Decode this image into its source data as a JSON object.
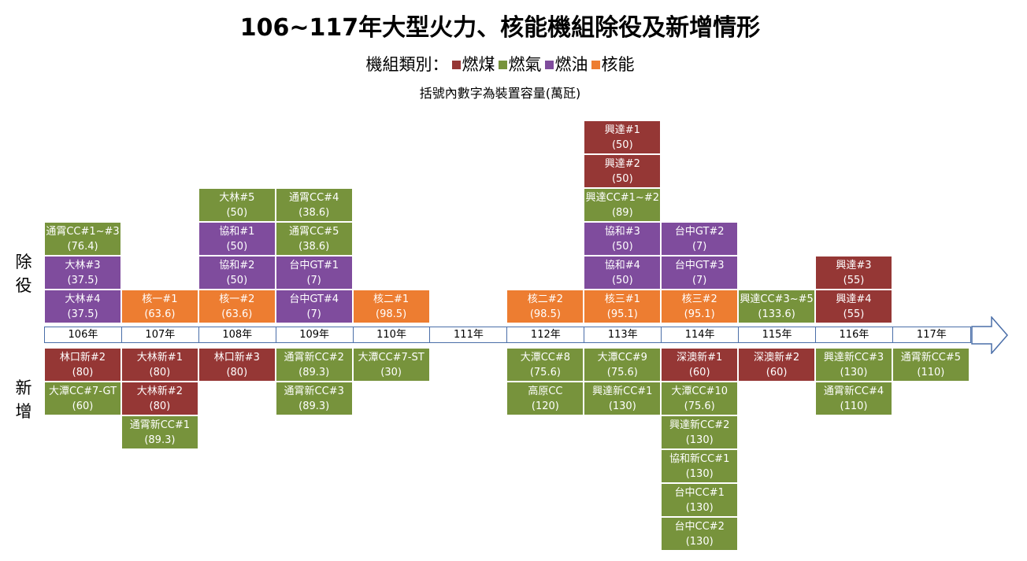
{
  "title": "106~117年大型火力、核能機組除役及新增情形",
  "legend": {
    "prefix": "機組類別：",
    "items": [
      {
        "label": "燃煤",
        "color": "#953735"
      },
      {
        "label": "燃氣",
        "color": "#77933c"
      },
      {
        "label": "燃油",
        "color": "#7f4c9d"
      },
      {
        "label": "核能",
        "color": "#ed7d31"
      }
    ]
  },
  "subtitle": "括號內數字為裝置容量(萬瓩)",
  "labels": {
    "retire": "除役",
    "add": "新增"
  },
  "colors": {
    "coal": "#953735",
    "gas": "#77933c",
    "oil": "#7f4c9d",
    "nuclear": "#ed7d31"
  },
  "years": [
    "106年",
    "107年",
    "108年",
    "109年",
    "110年",
    "111年",
    "112年",
    "113年",
    "114年",
    "115年",
    "116年",
    "117年"
  ],
  "retire": [
    [
      {
        "name": "大林#4",
        "cap": "(37.5)",
        "type": "oil"
      },
      {
        "name": "大林#3",
        "cap": "(37.5)",
        "type": "oil"
      },
      {
        "name": "通霄CC#1~#3",
        "cap": "(76.4)",
        "type": "gas"
      }
    ],
    [
      {
        "name": "核一#1",
        "cap": "(63.6)",
        "type": "nuclear"
      }
    ],
    [
      {
        "name": "核一#2",
        "cap": "(63.6)",
        "type": "nuclear"
      },
      {
        "name": "協和#2",
        "cap": "(50)",
        "type": "oil"
      },
      {
        "name": "協和#1",
        "cap": "(50)",
        "type": "oil"
      },
      {
        "name": "大林#5",
        "cap": "(50)",
        "type": "gas"
      }
    ],
    [
      {
        "name": "台中GT#4",
        "cap": "(7)",
        "type": "oil"
      },
      {
        "name": "台中GT#1",
        "cap": "(7)",
        "type": "oil"
      },
      {
        "name": "通霄CC#5",
        "cap": "(38.6)",
        "type": "gas"
      },
      {
        "name": "通霄CC#4",
        "cap": "(38.6)",
        "type": "gas"
      }
    ],
    [
      {
        "name": "核二#1",
        "cap": "(98.5)",
        "type": "nuclear"
      }
    ],
    [],
    [
      {
        "name": "核二#2",
        "cap": "(98.5)",
        "type": "nuclear"
      }
    ],
    [
      {
        "name": "核三#1",
        "cap": "(95.1)",
        "type": "nuclear"
      },
      {
        "name": "協和#4",
        "cap": "(50)",
        "type": "oil"
      },
      {
        "name": "協和#3",
        "cap": "(50)",
        "type": "oil"
      },
      {
        "name": "興達CC#1~#2",
        "cap": "(89)",
        "type": "gas"
      },
      {
        "name": "興達#2",
        "cap": "(50)",
        "type": "coal"
      },
      {
        "name": "興達#1",
        "cap": "(50)",
        "type": "coal"
      }
    ],
    [
      {
        "name": "核三#2",
        "cap": "(95.1)",
        "type": "nuclear"
      },
      {
        "name": "台中GT#3",
        "cap": "(7)",
        "type": "oil"
      },
      {
        "name": "台中GT#2",
        "cap": "(7)",
        "type": "oil"
      }
    ],
    [
      {
        "name": "興達CC#3~#5",
        "cap": "(133.6)",
        "type": "gas"
      }
    ],
    [
      {
        "name": "興達#4",
        "cap": "(55)",
        "type": "coal"
      },
      {
        "name": "興達#3",
        "cap": "(55)",
        "type": "coal"
      }
    ],
    []
  ],
  "add": [
    [
      {
        "name": "林口新#2",
        "cap": "(80)",
        "type": "coal"
      },
      {
        "name": "大潭CC#7-GT",
        "cap": "(60)",
        "type": "gas"
      }
    ],
    [
      {
        "name": "大林新#1",
        "cap": "(80)",
        "type": "coal"
      },
      {
        "name": "大林新#2",
        "cap": "(80)",
        "type": "coal"
      },
      {
        "name": "通霄新CC#1",
        "cap": "(89.3)",
        "type": "gas"
      }
    ],
    [
      {
        "name": "林口新#3",
        "cap": "(80)",
        "type": "coal"
      }
    ],
    [
      {
        "name": "通霄新CC#2",
        "cap": "(89.3)",
        "type": "gas"
      },
      {
        "name": "通霄新CC#3",
        "cap": "(89.3)",
        "type": "gas"
      }
    ],
    [
      {
        "name": "大潭CC#7-ST",
        "cap": "(30)",
        "type": "gas"
      }
    ],
    [],
    [
      {
        "name": "大潭CC#8",
        "cap": "(75.6)",
        "type": "gas"
      },
      {
        "name": "高原CC",
        "cap": "(120)",
        "type": "gas"
      }
    ],
    [
      {
        "name": "大潭CC#9",
        "cap": "(75.6)",
        "type": "gas"
      },
      {
        "name": "興達新CC#1",
        "cap": "(130)",
        "type": "gas"
      }
    ],
    [
      {
        "name": "深澳新#1",
        "cap": "(60)",
        "type": "coal"
      },
      {
        "name": "大潭CC#10",
        "cap": "(75.6)",
        "type": "gas"
      },
      {
        "name": "興達新CC#2",
        "cap": "(130)",
        "type": "gas"
      },
      {
        "name": "協和新CC#1",
        "cap": "(130)",
        "type": "gas"
      },
      {
        "name": "台中CC#1",
        "cap": "(130)",
        "type": "gas"
      },
      {
        "name": "台中CC#2",
        "cap": "(130)",
        "type": "gas"
      }
    ],
    [
      {
        "name": "深澳新#2",
        "cap": "(60)",
        "type": "coal"
      }
    ],
    [
      {
        "name": "興達新CC#3",
        "cap": "(130)",
        "type": "gas"
      },
      {
        "name": "通霄新CC#4",
        "cap": "(110)",
        "type": "gas"
      }
    ],
    [
      {
        "name": "通霄新CC#5",
        "cap": "(110)",
        "type": "gas"
      }
    ]
  ]
}
